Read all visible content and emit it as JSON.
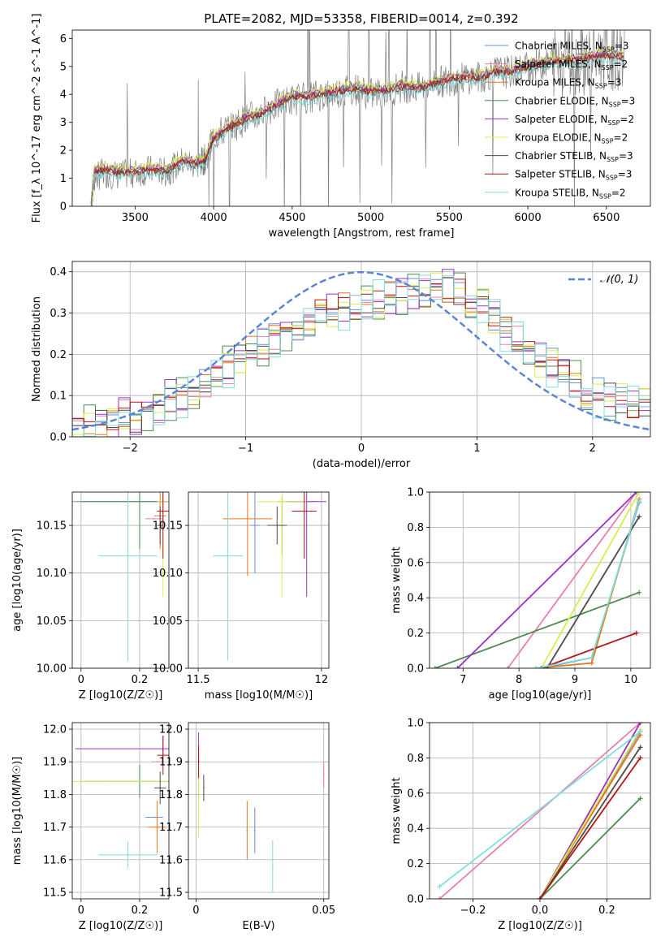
{
  "colors": {
    "Chabrier MILES": "#6b8fd8",
    "Salpeter MILES": "#e77fb1",
    "Kroupa MILES": "#e8751a",
    "Chabrier ELODIE": "#4e8a4e",
    "Salpeter ELODIE": "#9b30c8",
    "Kroupa ELODIE": "#d6ef4b",
    "Chabrier STELIB": "#4b4b4b",
    "Salpeter STELIB": "#b31414",
    "Kroupa STELIB": "#7fdede",
    "observed": "#7f7f7f",
    "normal": "#5b86d6"
  },
  "chart_data": [
    {
      "id": "spectrum",
      "type": "line",
      "title": "PLATE=2082, MJD=53358, FIBERID=0014, z=0.392",
      "xlabel": "wavelength [Angstrom, rest frame]",
      "ylabel": "Flux [f_λ 10^-17 erg cm^-2 s^-1 A^-1]",
      "xlim": [
        3100,
        6780
      ],
      "ylim": [
        0,
        6.3
      ],
      "xticks": [
        3500,
        4000,
        4500,
        5000,
        5500,
        6000,
        6500
      ],
      "yticks": [
        0,
        1,
        2,
        3,
        4,
        5,
        6
      ],
      "legend_position": "top-right",
      "observed_x": [
        3220,
        3240,
        3300,
        3400,
        3500,
        3600,
        3700,
        3800,
        3900,
        3950,
        4000,
        4100,
        4200,
        4300,
        4400,
        4500,
        4600,
        4700,
        4800,
        4900,
        5000,
        5100,
        5200,
        5300,
        5400,
        5500,
        5600,
        5700,
        5800,
        5900,
        6000,
        6100,
        6200,
        6300,
        6400,
        6500,
        6620
      ],
      "observed_y": [
        0.0,
        1.0,
        1.2,
        1.1,
        1.2,
        1.3,
        1.2,
        1.6,
        1.5,
        1.7,
        2.5,
        2.8,
        3.1,
        3.3,
        3.6,
        3.8,
        3.9,
        4.0,
        4.1,
        4.2,
        4.0,
        4.1,
        4.3,
        4.2,
        4.4,
        4.5,
        4.6,
        4.6,
        4.8,
        4.8,
        5.0,
        5.1,
        5.2,
        5.2,
        5.3,
        5.4,
        5.3
      ],
      "model_x": [
        3220,
        3240,
        3300,
        3400,
        3500,
        3600,
        3700,
        3800,
        3900,
        3950,
        4000,
        4100,
        4200,
        4300,
        4400,
        4500,
        4600,
        4700,
        4800,
        4900,
        5000,
        5100,
        5200,
        5300,
        5400,
        5500,
        5600,
        5700,
        5800,
        5900,
        6000,
        6100,
        6200,
        6300,
        6400,
        6500,
        6620
      ],
      "model_y": [
        0.0,
        1.2,
        1.3,
        1.2,
        1.2,
        1.3,
        1.25,
        1.6,
        1.5,
        1.7,
        2.4,
        2.8,
        3.1,
        3.3,
        3.6,
        3.9,
        3.9,
        4.0,
        4.1,
        4.2,
        4.1,
        4.1,
        4.3,
        4.2,
        4.4,
        4.5,
        4.6,
        4.6,
        4.8,
        4.8,
        5.0,
        5.1,
        5.2,
        5.2,
        5.3,
        5.4,
        5.3
      ],
      "series": [
        {
          "name": "Chabrier MILES, N_SSP=3",
          "offset": 0.05
        },
        {
          "name": "Salpeter MILES, N_SSP=2",
          "offset": 0.1
        },
        {
          "name": "Kroupa MILES, N_SSP=3",
          "offset": 0.0
        },
        {
          "name": "Chabrier ELODIE, N_SSP=3",
          "offset": 0.08
        },
        {
          "name": "Salpeter ELODIE, N_SSP=2",
          "offset": 0.12
        },
        {
          "name": "Kroupa ELODIE, N_SSP=2",
          "offset": 0.18
        },
        {
          "name": "Chabrier STELIB, N_SSP=3",
          "offset": -0.05
        },
        {
          "name": "Salpeter STELIB, N_SSP=3",
          "offset": 0.0
        },
        {
          "name": "Kroupa STELIB, N_SSP=2",
          "offset": -0.15
        }
      ]
    },
    {
      "id": "residuals",
      "type": "line",
      "xlabel": "(data-model)/error",
      "ylabel": "Normed distribution",
      "xlim": [
        -2.5,
        2.5
      ],
      "ylim": [
        0,
        0.425
      ],
      "xticks": [
        -2,
        -1,
        0,
        1,
        2
      ],
      "yticks": [
        0.0,
        0.1,
        0.2,
        0.3,
        0.4
      ],
      "grid": true,
      "legend_position": "top-right",
      "normal_label": "𝒩(0, 1)",
      "bins": [
        -2.5,
        -2.4,
        -2.3,
        -2.2,
        -2.1,
        -2.0,
        -1.9,
        -1.8,
        -1.7,
        -1.6,
        -1.5,
        -1.4,
        -1.3,
        -1.2,
        -1.1,
        -1.0,
        -0.9,
        -0.8,
        -0.7,
        -0.6,
        -0.5,
        -0.4,
        -0.3,
        -0.2,
        -0.1,
        0.0,
        0.1,
        0.2,
        0.3,
        0.4,
        0.5,
        0.6,
        0.7,
        0.8,
        0.9,
        1.0,
        1.1,
        1.2,
        1.3,
        1.4,
        1.5,
        1.6,
        1.7,
        1.8,
        1.9,
        2.0,
        2.1,
        2.2,
        2.3,
        2.4,
        2.5
      ],
      "base_counts": [
        0.02,
        0.025,
        0.03,
        0.04,
        0.045,
        0.05,
        0.06,
        0.07,
        0.09,
        0.1,
        0.11,
        0.13,
        0.15,
        0.17,
        0.19,
        0.21,
        0.22,
        0.24,
        0.26,
        0.27,
        0.28,
        0.3,
        0.3,
        0.31,
        0.31,
        0.32,
        0.33,
        0.34,
        0.34,
        0.35,
        0.35,
        0.36,
        0.36,
        0.35,
        0.34,
        0.32,
        0.29,
        0.26,
        0.23,
        0.21,
        0.19,
        0.17,
        0.15,
        0.13,
        0.11,
        0.1,
        0.09,
        0.09,
        0.08,
        0.08
      ],
      "series_jitter": [
        0.02,
        -0.015,
        0.01,
        0.025,
        -0.02,
        0.015,
        -0.01,
        0.005,
        -0.025
      ]
    },
    {
      "id": "age-Z",
      "type": "scatter",
      "xlabel": "Z [log10(Z/Z☉)]",
      "ylabel": "age  [log10(age/yr)]",
      "xlim": [
        -0.03,
        0.3
      ],
      "ylim": [
        10.0,
        10.185
      ],
      "xticks": [
        0.0,
        0.2
      ],
      "yticks": [
        10.0,
        10.05,
        10.1,
        10.15
      ],
      "grid": true,
      "points": [
        {
          "x": 0.22,
          "y": 10.175,
          "xerr": 0.3,
          "yerr": 0.0
        },
        {
          "x": 0.25,
          "y": 10.157,
          "xerr": 0.03,
          "yerr": 0.0
        },
        {
          "x": 0.27,
          "y": 10.16,
          "xerr": 0.02,
          "yerr": 0.035
        },
        {
          "x": 0.2,
          "y": 10.175,
          "xerr": 0.2,
          "yerr": 0.05
        },
        {
          "x": 0.28,
          "y": 10.175,
          "xerr": 0.01,
          "yerr": 0.03
        },
        {
          "x": 0.28,
          "y": 10.175,
          "xerr": 0.02,
          "yerr": 0.1
        },
        {
          "x": 0.27,
          "y": 10.15,
          "xerr": 0.01,
          "yerr": 0.02
        },
        {
          "x": 0.28,
          "y": 10.165,
          "xerr": 0.02,
          "yerr": 0.05
        },
        {
          "x": 0.16,
          "y": 10.118,
          "xerr": 0.1,
          "yerr": 0.11
        }
      ]
    },
    {
      "id": "age-mass",
      "type": "scatter",
      "xlabel": "mass [log10(M/M☉)]",
      "ylabel": "",
      "xlim": [
        11.46,
        12.03
      ],
      "ylim": [
        10.0,
        10.185
      ],
      "xticks": [
        11.5,
        12.0
      ],
      "yticks": [
        10.0,
        10.05,
        10.1,
        10.15
      ],
      "grid": true,
      "points": [
        {
          "x": 11.73,
          "y": 10.15,
          "xerr": 0.02,
          "yerr": 0.05
        },
        {
          "x": 11.9,
          "y": 10.175,
          "xerr": 0.08,
          "yerr": 0.0
        },
        {
          "x": 11.7,
          "y": 10.157,
          "xerr": 0.1,
          "yerr": 0.06
        },
        {
          "x": 11.84,
          "y": 10.15,
          "xerr": 0.01,
          "yerr": 0.03
        },
        {
          "x": 11.94,
          "y": 10.175,
          "xerr": 0.08,
          "yerr": 0.1
        },
        {
          "x": 11.84,
          "y": 10.175,
          "xerr": 0.1,
          "yerr": 0.1
        },
        {
          "x": 11.82,
          "y": 10.15,
          "xerr": 0.04,
          "yerr": 0.02
        },
        {
          "x": 11.93,
          "y": 10.165,
          "xerr": 0.05,
          "yerr": 0.05
        },
        {
          "x": 11.62,
          "y": 10.118,
          "xerr": 0.06,
          "yerr": 0.11
        }
      ]
    },
    {
      "id": "weight-age",
      "type": "line",
      "xlabel": "age  [log10(age/yr)]",
      "ylabel": "mass weight",
      "xlim": [
        6.4,
        10.35
      ],
      "ylim": [
        0.0,
        1.0
      ],
      "xticks": [
        7,
        8,
        9,
        10
      ],
      "yticks": [
        0.0,
        0.2,
        0.4,
        0.6,
        0.8,
        1.0
      ],
      "grid": true,
      "lines": [
        {
          "x": [
            8.4,
            9.3,
            10.15
          ],
          "y": [
            0.0,
            0.06,
            0.94
          ]
        },
        {
          "x": [
            7.8,
            10.1
          ],
          "y": [
            0.0,
            1.0
          ]
        },
        {
          "x": [
            8.3,
            9.3,
            10.15
          ],
          "y": [
            0.0,
            0.03,
            0.96
          ]
        },
        {
          "x": [
            6.5,
            10.15
          ],
          "y": [
            0.0,
            0.43
          ]
        },
        {
          "x": [
            6.9,
            10.1
          ],
          "y": [
            0.0,
            1.0
          ]
        },
        {
          "x": [
            8.4,
            10.15
          ],
          "y": [
            0.0,
            1.0
          ]
        },
        {
          "x": [
            8.5,
            10.15
          ],
          "y": [
            0.0,
            0.86
          ]
        },
        {
          "x": [
            8.4,
            10.1
          ],
          "y": [
            0.0,
            0.2
          ]
        },
        {
          "x": [
            8.3,
            9.3,
            10.15
          ],
          "y": [
            0.0,
            0.06,
            0.95
          ]
        }
      ]
    },
    {
      "id": "mass-Z",
      "type": "scatter",
      "xlabel": "Z [log10(Z/Z☉)]",
      "ylabel": "mass [log10(M/M☉)]",
      "xlim": [
        -0.03,
        0.3
      ],
      "ylim": [
        11.48,
        12.02
      ],
      "xticks": [
        0.0,
        0.2
      ],
      "yticks": [
        11.5,
        11.6,
        11.7,
        11.8,
        11.9,
        12.0
      ],
      "grid": true,
      "points": [
        {
          "x": 0.25,
          "y": 11.73,
          "xerr": 0.03,
          "yerr": 0.0
        },
        {
          "x": 0.26,
          "y": 11.9,
          "xerr": 0.02,
          "yerr": 0.0
        },
        {
          "x": 0.26,
          "y": 11.7,
          "xerr": 0.03,
          "yerr": 0.08
        },
        {
          "x": 0.2,
          "y": 11.84,
          "xerr": 0.2,
          "yerr": 0.05
        },
        {
          "x": 0.28,
          "y": 11.94,
          "xerr": 0.3,
          "yerr": 0.04
        },
        {
          "x": 0.1,
          "y": 11.84,
          "xerr": 0.2,
          "yerr": 0.0
        },
        {
          "x": 0.27,
          "y": 11.82,
          "xerr": 0.02,
          "yerr": 0.05
        },
        {
          "x": 0.28,
          "y": 11.92,
          "xerr": 0.02,
          "yerr": 0.06
        },
        {
          "x": 0.16,
          "y": 11.615,
          "xerr": 0.1,
          "yerr": 0.04
        }
      ]
    },
    {
      "id": "mass-EBV",
      "type": "scatter",
      "xlabel": "E(B-V)",
      "ylabel": "",
      "xlim": [
        -0.003,
        0.052
      ],
      "ylim": [
        11.48,
        12.02
      ],
      "xticks": [
        0.0,
        0.05
      ],
      "yticks": [
        11.5,
        11.6,
        11.7,
        11.8,
        11.9,
        12.0
      ],
      "grid": true,
      "points": [
        {
          "x": 0.023,
          "y": 11.69,
          "xerr": 0.0,
          "yerr": 0.07
        },
        {
          "x": 0.05,
          "y": 11.86,
          "xerr": 0.0,
          "yerr": 0.04
        },
        {
          "x": 0.02,
          "y": 11.69,
          "xerr": 0.0,
          "yerr": 0.09
        },
        {
          "x": 0.001,
          "y": 11.83,
          "xerr": 0.0,
          "yerr": 0.05
        },
        {
          "x": 0.001,
          "y": 11.94,
          "xerr": 0.0,
          "yerr": 0.05
        },
        {
          "x": 0.001,
          "y": 11.76,
          "xerr": 0.0,
          "yerr": 0.09
        },
        {
          "x": 0.003,
          "y": 11.82,
          "xerr": 0.0,
          "yerr": 0.04
        },
        {
          "x": 0.001,
          "y": 11.9,
          "xerr": 0.0,
          "yerr": 0.05
        },
        {
          "x": 0.03,
          "y": 11.58,
          "xerr": 0.0,
          "yerr": 0.08
        }
      ]
    },
    {
      "id": "weight-Z",
      "type": "line",
      "xlabel": "Z [log10(Z/Z☉)]",
      "ylabel": "mass weight",
      "xlim": [
        -0.33,
        0.33
      ],
      "ylim": [
        0.0,
        1.0
      ],
      "xticks": [
        -0.2,
        0.0,
        0.2
      ],
      "yticks": [
        0.0,
        0.2,
        0.4,
        0.6,
        0.8,
        1.0
      ],
      "grid": true,
      "lines": [
        {
          "x": [
            -0.0,
            0.3
          ],
          "y": [
            0.0,
            0.95
          ]
        },
        {
          "x": [
            -0.3,
            0.3
          ],
          "y": [
            0.0,
            1.0
          ]
        },
        {
          "x": [
            0.0,
            0.3
          ],
          "y": [
            0.0,
            0.93
          ]
        },
        {
          "x": [
            0.0,
            0.3
          ],
          "y": [
            0.0,
            0.57
          ]
        },
        {
          "x": [
            0.0,
            0.3
          ],
          "y": [
            0.0,
            1.0
          ]
        },
        {
          "x": [
            0.0,
            0.3
          ],
          "y": [
            0.0,
            0.96
          ]
        },
        {
          "x": [
            0.0,
            0.3
          ],
          "y": [
            0.0,
            0.86
          ]
        },
        {
          "x": [
            0.0,
            0.3
          ],
          "y": [
            0.0,
            0.8
          ]
        },
        {
          "x": [
            -0.3,
            0.3
          ],
          "y": [
            0.07,
            0.95
          ]
        }
      ]
    }
  ]
}
